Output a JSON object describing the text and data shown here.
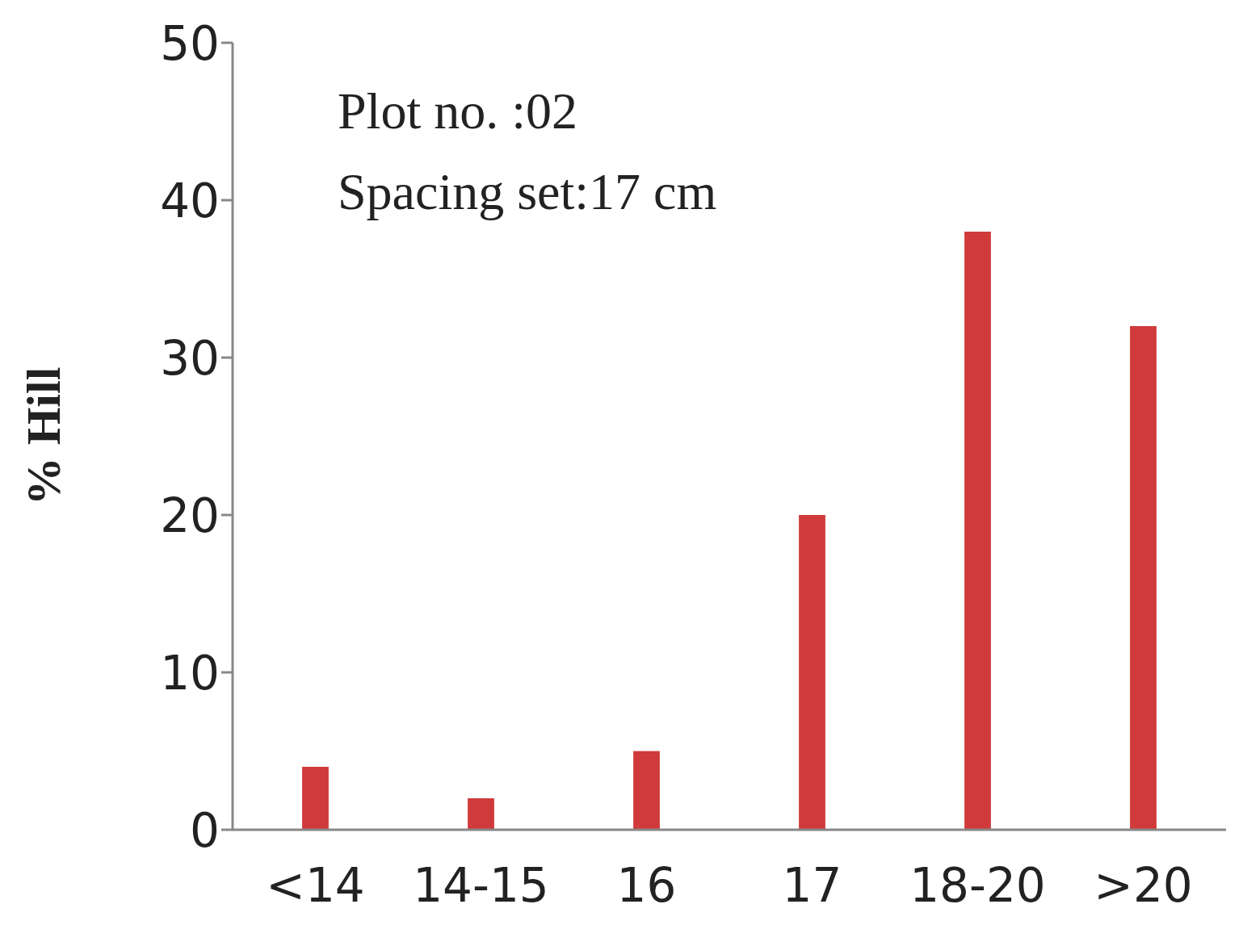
{
  "chart_data": {
    "type": "bar",
    "ylabel": "% Hill",
    "annotations": [
      "Plot no. :02",
      "Spacing set:17 cm"
    ],
    "categories": [
      "<14",
      "14-15",
      "16",
      "17",
      "18-20",
      ">20"
    ],
    "values": [
      4,
      2,
      5,
      20,
      38,
      32
    ],
    "color": "#d03a3a",
    "ylim": [
      0,
      50
    ],
    "yticks": [
      0,
      10,
      20,
      30,
      40,
      50
    ],
    "grid": false,
    "legend": false
  }
}
